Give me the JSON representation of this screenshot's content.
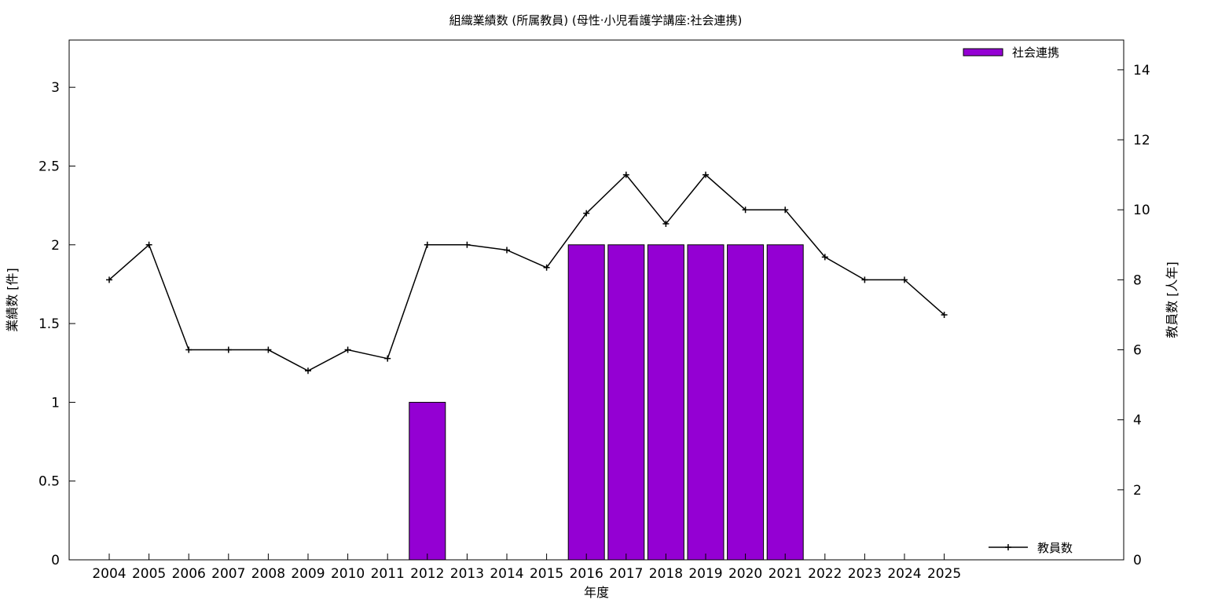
{
  "chart_data": {
    "type": "bar",
    "title": "組織業績数 (所属教員) (母性·小児看護学講座:社会連携)",
    "xlabel": "年度",
    "ylabel": "業績数 [件]",
    "y2label": "教員数 [人年]",
    "categories": [
      "2004",
      "2005",
      "2006",
      "2007",
      "2008",
      "2009",
      "2010",
      "2011",
      "2012",
      "2013",
      "2014",
      "2015",
      "2016",
      "2017",
      "2018",
      "2019",
      "2020",
      "2021",
      "2022",
      "2023",
      "2024",
      "2025"
    ],
    "series": [
      {
        "name": "社会連携",
        "type": "bar",
        "axis": "left",
        "color": "#9400d3",
        "values": [
          0,
          0,
          0,
          0,
          0,
          0,
          0,
          0,
          1,
          0,
          0,
          0,
          2,
          2,
          2,
          2,
          2,
          2,
          0,
          0,
          0,
          0
        ]
      },
      {
        "name": "教員数",
        "type": "line",
        "axis": "right",
        "color": "#000000",
        "values": [
          8,
          9,
          6,
          6,
          6,
          5.4,
          6,
          5.75,
          9,
          9,
          8.85,
          8.35,
          9.9,
          11,
          9.6,
          11,
          10,
          10,
          8.65,
          8,
          8,
          7
        ]
      }
    ],
    "ylim": [
      0,
      3.3
    ],
    "yticks": [
      "0",
      "0.5",
      "1",
      "1.5",
      "2",
      "2.5",
      "3"
    ],
    "y2lim": [
      0,
      14.85
    ],
    "y2ticks": [
      "0",
      "2",
      "4",
      "6",
      "8",
      "10",
      "12",
      "14"
    ],
    "grid": false,
    "legend_positions": {
      "bars": "top-right",
      "line": "bottom-right"
    }
  }
}
